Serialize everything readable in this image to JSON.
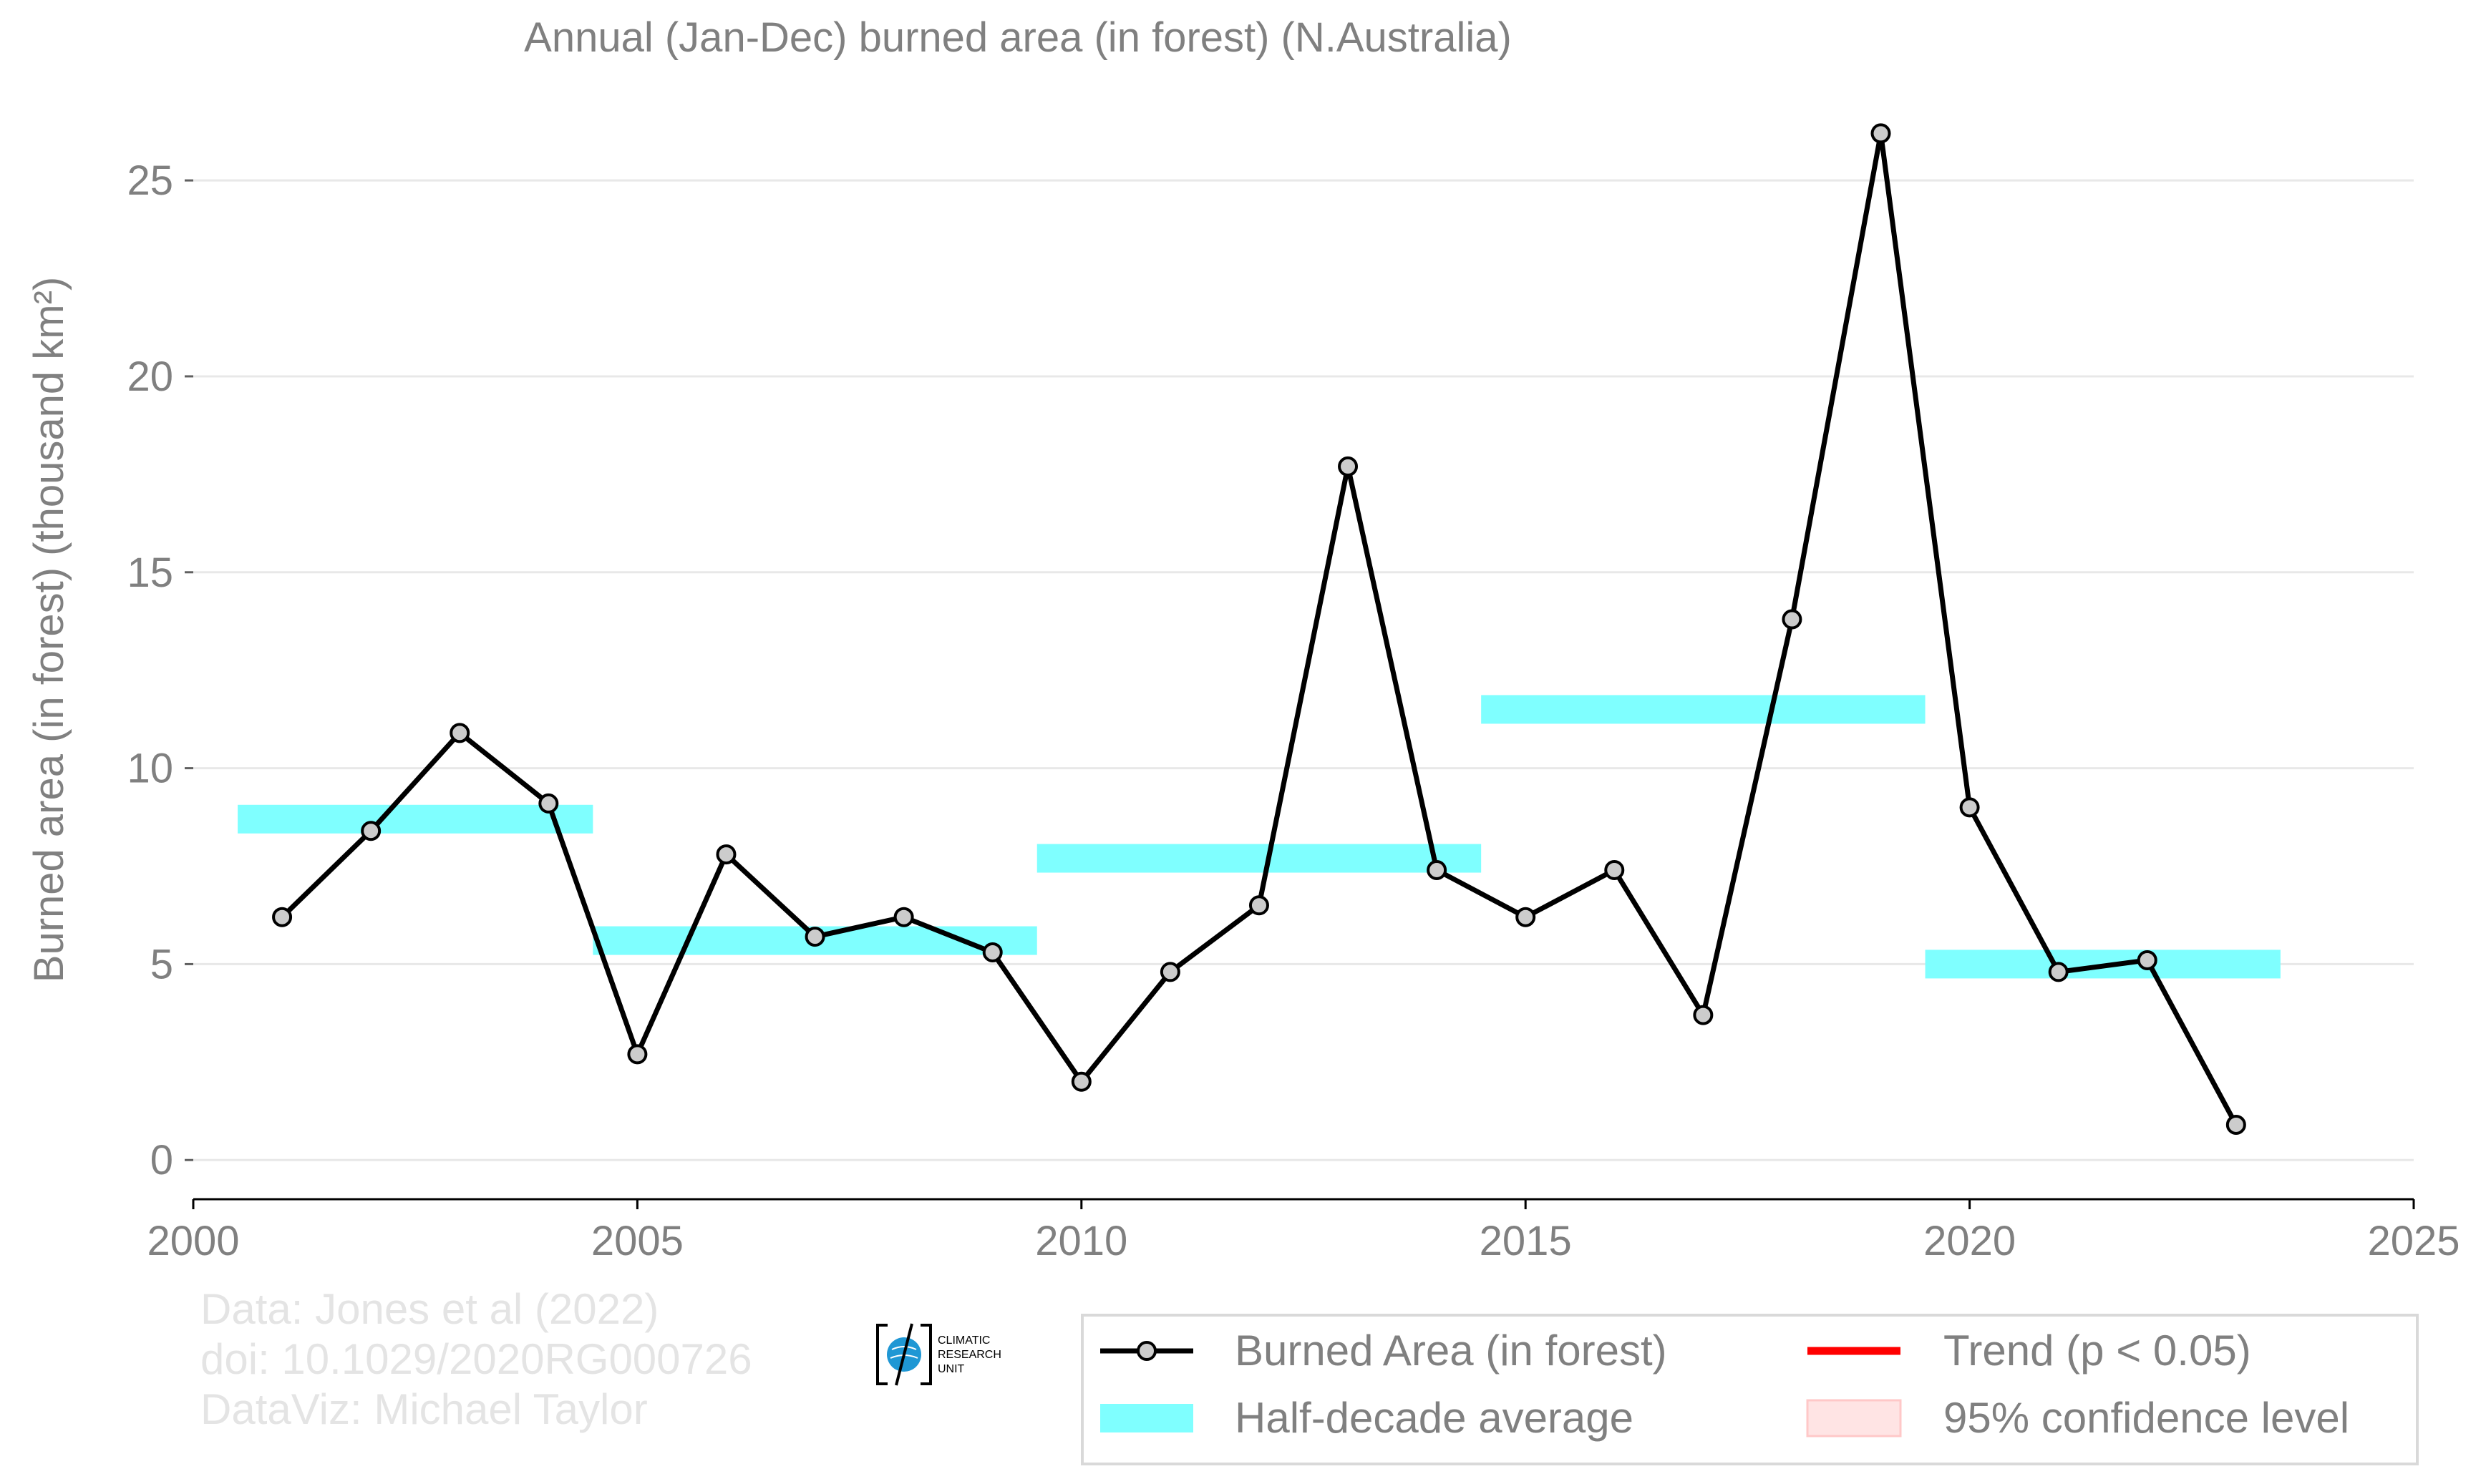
{
  "chart_data": {
    "type": "line",
    "title": "Annual (Jan-Dec) burned area (in forest) (N.Australia)",
    "ylabel": "Burned area (in forest) (thousand km²)",
    "xlabel": "",
    "xlim": [
      2000,
      2025
    ],
    "ylim": [
      -1,
      26.5
    ],
    "x_ticks": [
      2000,
      2005,
      2010,
      2015,
      2020,
      2025
    ],
    "y_ticks": [
      0,
      5,
      10,
      15,
      20,
      25
    ],
    "grid": "horizontal",
    "legend_position": "bottom-right, below plot",
    "colors": {
      "line": "#000000",
      "marker_fill": "#cccccc",
      "half_decade": "#7fffff",
      "trend": "#ff0000",
      "confidence": "#ffe4e4",
      "text": "#808080",
      "grid": "#e8e8e8"
    },
    "series": [
      {
        "name": "Burned Area (in forest)",
        "x": [
          2001,
          2002,
          2003,
          2004,
          2005,
          2006,
          2007,
          2008,
          2009,
          2010,
          2011,
          2012,
          2013,
          2014,
          2015,
          2016,
          2017,
          2018,
          2019,
          2020,
          2021,
          2022,
          2023
        ],
        "y": [
          6.2,
          8.4,
          10.9,
          9.1,
          2.7,
          7.8,
          5.7,
          6.2,
          5.3,
          2.0,
          4.8,
          6.5,
          17.7,
          7.4,
          6.2,
          7.4,
          3.7,
          13.8,
          26.2,
          9.0,
          4.8,
          5.1,
          0.9
        ]
      },
      {
        "name": "Half-decade average",
        "segments": [
          {
            "x_start": 2000.5,
            "x_end": 2004.5,
            "y": 8.7
          },
          {
            "x_start": 2004.5,
            "x_end": 2009.5,
            "y": 5.6
          },
          {
            "x_start": 2009.5,
            "x_end": 2014.5,
            "y": 7.7
          },
          {
            "x_start": 2014.5,
            "x_end": 2019.5,
            "y": 11.5
          },
          {
            "x_start": 2019.5,
            "x_end": 2023.5,
            "y": 5.0
          }
        ]
      }
    ],
    "legend": [
      "Burned Area (in forest)",
      "Half-decade average",
      "Trend (p < 0.05)",
      "95% confidence level"
    ]
  },
  "credits": {
    "line1": "Data: Jones et al (2022)",
    "line2": "doi: 10.1029/2020RG000726",
    "line3": "DataViz: Michael Taylor"
  },
  "logo": {
    "line1": "CLIMATIC",
    "line2": "RESEARCH",
    "line3": "UNIT"
  }
}
